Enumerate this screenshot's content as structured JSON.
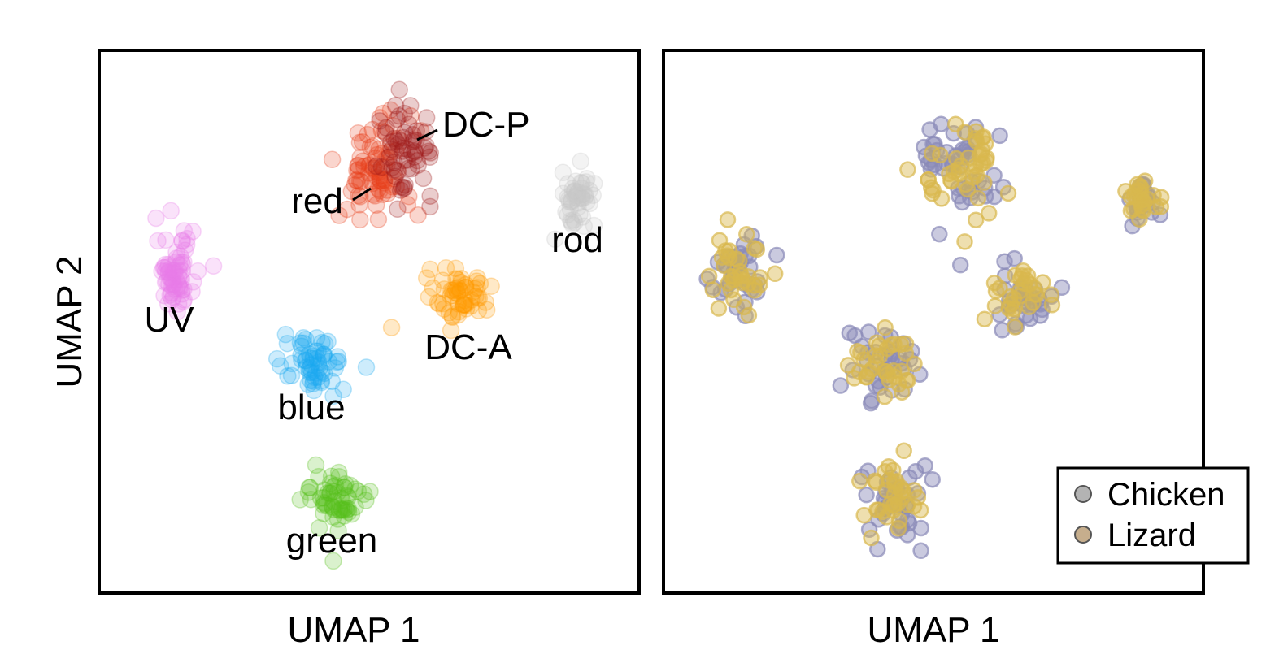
{
  "chart_data": [
    {
      "type": "scatter",
      "xlabel": "UMAP 1",
      "ylabel": "UMAP 2",
      "xlim": [
        0,
        10
      ],
      "ylim": [
        0,
        10
      ],
      "ticks": "none",
      "grid": false,
      "legend": "none (cluster labels placed next to clusters)",
      "clusters": [
        {
          "label": "UV",
          "color": "#e87de8",
          "center": [
            1.4,
            5.9
          ],
          "spread": [
            0.18,
            0.35
          ],
          "n": 70
        },
        {
          "label": "red",
          "color": "#e8401c",
          "center": [
            5.1,
            7.8
          ],
          "spread": [
            0.35,
            0.55
          ],
          "n": 80
        },
        {
          "label": "DC-P",
          "color": "#a01c1c",
          "center": [
            5.7,
            8.2
          ],
          "spread": [
            0.25,
            0.45
          ],
          "n": 60
        },
        {
          "label": "rod",
          "color": "#c8c8c8",
          "center": [
            8.9,
            7.3
          ],
          "spread": [
            0.16,
            0.22
          ],
          "n": 50
        },
        {
          "label": "DC-A",
          "color": "#ff9900",
          "center": [
            6.7,
            5.5
          ],
          "spread": [
            0.3,
            0.25
          ],
          "n": 60
        },
        {
          "label": "blue",
          "color": "#1aa8f0",
          "center": [
            4.0,
            4.2
          ],
          "spread": [
            0.3,
            0.25
          ],
          "n": 60
        },
        {
          "label": "green",
          "color": "#55c01c",
          "center": [
            4.4,
            1.7
          ],
          "spread": [
            0.3,
            0.28
          ],
          "n": 60
        }
      ],
      "annotations": [
        {
          "text": "DC-P",
          "points_to": "DC-P"
        },
        {
          "text": "red",
          "points_to": "red"
        }
      ]
    },
    {
      "type": "scatter",
      "xlabel": "UMAP 1",
      "ylabel": "",
      "xlim": [
        0,
        10
      ],
      "ylim": [
        0,
        10
      ],
      "ticks": "none",
      "grid": false,
      "legend": "bottom-right",
      "series": [
        {
          "name": "Chicken",
          "color": "#8a8ab8",
          "legend_swatch": "#a0a0a0"
        },
        {
          "name": "Lizard",
          "color": "#d9b84e",
          "legend_swatch": "#b89a70"
        }
      ],
      "clusters": [
        {
          "center": [
            5.5,
            7.8
          ],
          "spread": [
            0.4,
            0.55
          ],
          "n": 90
        },
        {
          "center": [
            8.9,
            7.3
          ],
          "spread": [
            0.15,
            0.2
          ],
          "n": 50
        },
        {
          "center": [
            1.4,
            5.9
          ],
          "spread": [
            0.25,
            0.35
          ],
          "n": 70
        },
        {
          "center": [
            6.6,
            5.5
          ],
          "spread": [
            0.3,
            0.28
          ],
          "n": 60
        },
        {
          "center": [
            4.0,
            4.2
          ],
          "spread": [
            0.3,
            0.35
          ],
          "n": 70
        },
        {
          "center": [
            4.3,
            1.7
          ],
          "spread": [
            0.3,
            0.35
          ],
          "n": 70
        }
      ]
    }
  ]
}
